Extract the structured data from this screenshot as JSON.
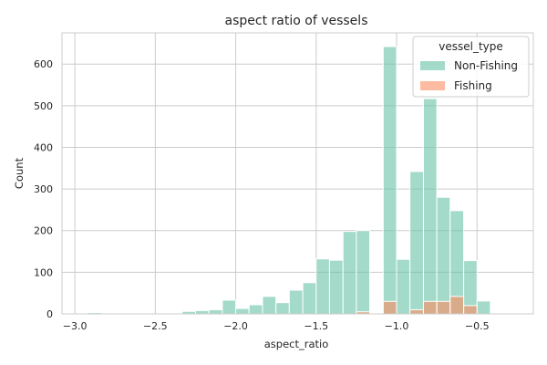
{
  "chart_data": {
    "type": "bar",
    "subtype": "histogram",
    "title": "aspect ratio of vessels",
    "xlabel": "aspect_ratio",
    "ylabel": "Count",
    "xlim": [
      -3.08,
      -0.15
    ],
    "ylim": [
      0,
      675
    ],
    "x_ticks": [
      -3.0,
      -2.5,
      -2.0,
      -1.5,
      -1.0,
      -0.5
    ],
    "x_tick_labels": [
      "−3.0",
      "−2.5",
      "−2.0",
      "−1.5",
      "−1.0",
      "−0.5"
    ],
    "y_ticks": [
      0,
      100,
      200,
      300,
      400,
      500,
      600
    ],
    "grid": true,
    "legend": {
      "title": "vessel_type",
      "placement": "top-right"
    },
    "bin_width": 0.0833,
    "series": [
      {
        "name": "Non-Fishing",
        "color": "#66c2a5",
        "bins": [
          {
            "x0": -2.917,
            "x1": -2.833,
            "count": 3
          },
          {
            "x0": -2.333,
            "x1": -2.25,
            "count": 6
          },
          {
            "x0": -2.25,
            "x1": -2.167,
            "count": 8
          },
          {
            "x0": -2.167,
            "x1": -2.083,
            "count": 10
          },
          {
            "x0": -2.083,
            "x1": -2.0,
            "count": 33
          },
          {
            "x0": -2.0,
            "x1": -1.917,
            "count": 13
          },
          {
            "x0": -1.917,
            "x1": -1.833,
            "count": 22
          },
          {
            "x0": -1.833,
            "x1": -1.75,
            "count": 42
          },
          {
            "x0": -1.75,
            "x1": -1.667,
            "count": 27
          },
          {
            "x0": -1.667,
            "x1": -1.583,
            "count": 57
          },
          {
            "x0": -1.583,
            "x1": -1.5,
            "count": 75
          },
          {
            "x0": -1.5,
            "x1": -1.417,
            "count": 132
          },
          {
            "x0": -1.417,
            "x1": -1.333,
            "count": 129
          },
          {
            "x0": -1.333,
            "x1": -1.25,
            "count": 198
          },
          {
            "x0": -1.25,
            "x1": -1.167,
            "count": 200
          },
          {
            "x0": -1.083,
            "x1": -1.0,
            "count": 642
          },
          {
            "x0": -1.0,
            "x1": -0.917,
            "count": 131
          },
          {
            "x0": -0.917,
            "x1": -0.833,
            "count": 342
          },
          {
            "x0": -0.833,
            "x1": -0.75,
            "count": 517
          },
          {
            "x0": -0.75,
            "x1": -0.667,
            "count": 280
          },
          {
            "x0": -0.667,
            "x1": -0.583,
            "count": 248
          },
          {
            "x0": -0.583,
            "x1": -0.5,
            "count": 128
          },
          {
            "x0": -0.5,
            "x1": -0.417,
            "count": 31
          },
          {
            "x0": -0.417,
            "x1": -0.333,
            "count": 2
          }
        ]
      },
      {
        "name": "Fishing",
        "color": "#fc8d62",
        "bins": [
          {
            "x0": -1.25,
            "x1": -1.167,
            "count": 5
          },
          {
            "x0": -1.083,
            "x1": -1.0,
            "count": 30
          },
          {
            "x0": -0.917,
            "x1": -0.833,
            "count": 10
          },
          {
            "x0": -0.833,
            "x1": -0.75,
            "count": 30
          },
          {
            "x0": -0.75,
            "x1": -0.667,
            "count": 30
          },
          {
            "x0": -0.667,
            "x1": -0.583,
            "count": 42
          },
          {
            "x0": -0.583,
            "x1": -0.5,
            "count": 20
          }
        ]
      }
    ]
  }
}
